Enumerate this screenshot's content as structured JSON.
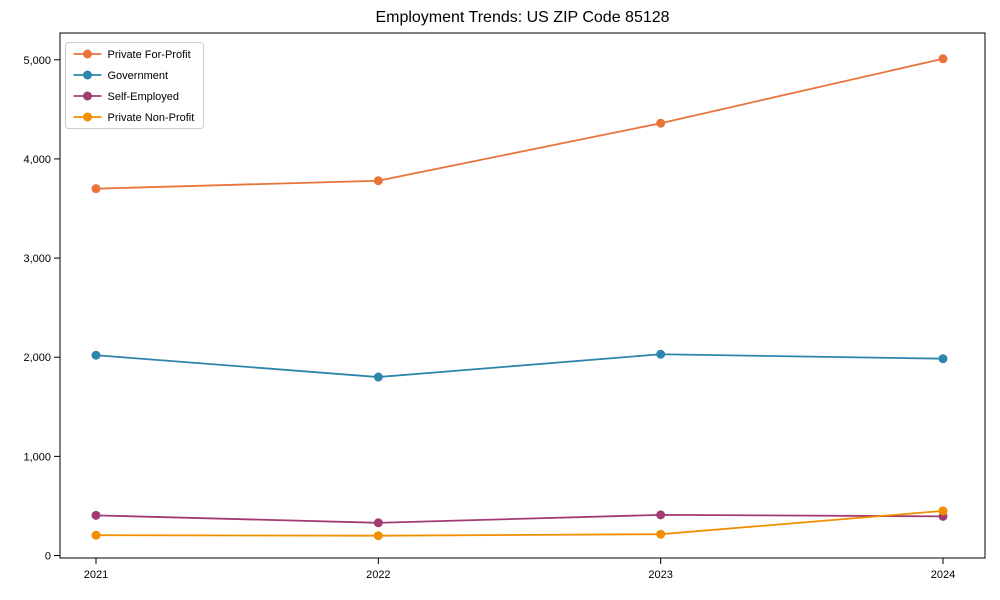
{
  "chart_data": {
    "type": "line",
    "title": "Employment Trends: US ZIP Code 85128",
    "xlabel": "",
    "ylabel": "",
    "categories": [
      "2021",
      "2022",
      "2023",
      "2024"
    ],
    "series": [
      {
        "name": "Private For-Profit",
        "color": "#e8743b",
        "values": [
          3700,
          3780,
          4360,
          5010
        ]
      },
      {
        "name": "Government",
        "color": "#2e86ab",
        "values": [
          2020,
          1800,
          2030,
          1985
        ]
      },
      {
        "name": "Self-Employed",
        "color": "#a23b72",
        "values": [
          405,
          330,
          410,
          395
        ]
      },
      {
        "name": "Private Non-Profit",
        "color": "#f18f01",
        "values": [
          205,
          200,
          215,
          450
        ]
      }
    ],
    "yticks": [
      0,
      1000,
      2000,
      3000,
      4000,
      5000
    ],
    "ylim": [
      -25,
      5270
    ],
    "grid": false,
    "marker": "circle",
    "legend_position": "upper-left",
    "frame_color": "#000000",
    "legend_border_color": "#cccccc"
  }
}
